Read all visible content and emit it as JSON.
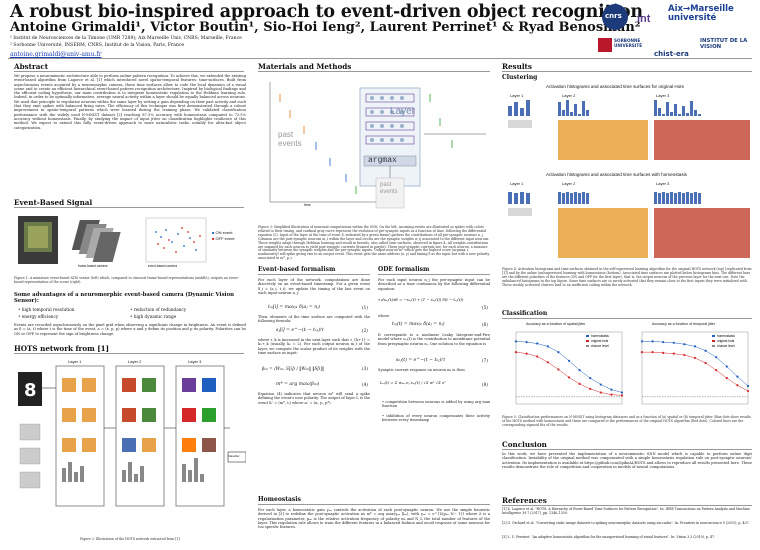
{
  "header": {
    "title": "A robust bio-inspired approach to event-driven object recognition",
    "authors": "Antoine Grimaldi¹, Victor Boutin¹, Sio-Hoi Ieng², Laurent Perrinet¹ & Ryad Benosman²",
    "affiliation_1": "¹ Institut de Neurosciences de la Timone (UMR 7289); Aix Marseille Univ, CNRS; Marseille, France",
    "affiliation_2": "² Sorbonne Université, INSERM, CNRS, Institut de la Vision, Paris, France",
    "email": "antoine.grimaldi@univ-amu.fr"
  },
  "logos": {
    "cnrs": "cnrs",
    "amu": "Aix→Marseille université",
    "sorbonne": "SORBONNE UNIVERSITÉ",
    "chistera": "chist-era",
    "institut": "INSTITUT DE LA VISION"
  },
  "left": {
    "abstract_heading": "Abstract",
    "abstract_text": "We propose a neuromimetic architecture able to perform online pattern recognition. To achieve this, we extended the existing event-based algorithm from Lagorce et al. [1] which introduced novel spatio-temporal features: time-surfaces. Built from asynchronous events acquired by a neuromorphic camera, these time surfaces allow to code the local dynamics of a visual scene and to create an efficient hierarchical event-based pattern recognition architecture. Inspired by biological findings and the efficient coding hypothesis, our main contribution is to integrate homeostatic regulation to the Hebbian learning rule. Indeed, in order to be optimally informative, average neural activity within a layer should be equally balanced across neurons. We used that principle to regularize neurons within the same layer by setting a gain depending on their past activity and such that they emit spikes with balanced firing rates. The efficiency of this technique was first demonstrated through a robust improvement in spatio-temporal patterns which were learned during the training phase. We validated classification performance with the widely used N-MNIST dataset [2] reaching 87.3% accuracy with homeostasis compared to 72.5% accuracy without homeostasis. Finally, by studying the impact of input jitter on classification highlights resilience of this method. We expect to extend this fully event-driven approach to more naturalistic tasks, notably for ultra-fast object categorization.",
    "event_heading": "Event-Based Signal",
    "fig1_caption": "Figure 1: A miniature event-based ATIS sensor (left) which, compared to classical frame-based representations (middle), outputs an event-based representation of the scene (right).",
    "fig1_on": "ON event",
    "fig1_off": "OFF event",
    "fig1_frame_label": "frame-based camera",
    "fig1_event_label": "event-based camera",
    "advantages_heading": "Some advantages of a neuromorphic event-based camera (Dynamic Vision Sensor):",
    "advantages": [
      "high temporal resolution",
      "reduction of redundancy",
      "energy efficiency",
      "high dynamic range"
    ],
    "events_text": "Events are recorded asynchronously on the pixel grid when observing a significant change in brightness. An event is defined as δ = (a, t) where t is the time of the event, a = (x, p, p) where x and y define its position and p its polarity. Polarities can be ON or OFF to represent the sign of brightness change.",
    "hots_heading": "HOTS network from [1]",
    "hots_layers": [
      "Layer 1",
      "Layer 2",
      "Layer 3"
    ],
    "hots_classifier": "Classifier",
    "fig2_caption": "Figure 2: Illustration of the HOTS network extracted from [1]."
  },
  "middle": {
    "heading": "Materials and Methods",
    "diagram_layer": "Layer",
    "diagram_argmax": "argmax",
    "diagram_past_events_left": "past events",
    "diagram_past_events_bottom": "past events",
    "diagram_time": "time",
    "fig3_caption": "Figure 3: Simplified illustration of neuronal computations within the SNN. On the left, incoming events are illustrated as spikes with colors related to their timing, and cardinal gray curve represent the evolution of pre-synaptic inputs as a function of time, following the differential equation (5). Input of the layer at the time of event δ, indicated by a green frame) gathers the contributions of all pre-synaptic neurons n_j. Columns are the post-synaptic neurons m_i within the layer and circles are the synaptic weights w_ij associated to the different input neurons. These weights adapt through Hebbian learning and result in kernels, also called time surfaces, observed in figure 4. All weights contributions are summed for each neuron to yield post-synaptic currents (framed in purple). These post-synaptic currents are, for each neuron, a measure of similarity between the synaptic weights and the pre-synaptic inputs. Output neuron m* which gets the highest score (argmax_i, nonlinearity) will spike giving rise to an output event. This event gets the same address (x, y) and timing δ as the input but with a new polarity associated to m*, p_i.",
    "ebf_heading": "Event-based formalism",
    "ebf_text_1": "For each layer of the network, computations are done discretely on an event-based timestamp. For a given event δ_i = (a_i, t_i), we update the timing of the last event on each input neuron n_j:",
    "ebf_eq1": "tₙⱼ[i] = maxⱼ̵₁ δ(aⱼ = nⱼ)",
    "ebf_text_2": "Then, elements of the time surface are computed with the following formula:",
    "ebf_eq2": "sⱼ[i] = e^−(tᵢ − tₙⱼ)/τ",
    "ebf_text_3": "where τ_k is increased in the next layer such that τ_{k+1} = k₀·τ_k (usually, k₀ = 2). For each output neuron m_i of the layer, we compute the scalar product of its weights with the time surface as input:",
    "ebf_eq3": "βₘᵢ = ⟨Wₘᵢ, S[i]⟩ / ‖Wₘᵢ‖ ‖S[i]‖",
    "ebf_eq4": "m* = arg maxᵢ(βₘᵢ)",
    "ebf_text_4": "Equation (4) indicates that neuron m* will send a spike defining the event's new polarity. The output of layer L is the event δᵢ' = (m*, tᵢ) where aᵢ' = (xᵢ, yᵢ, p*).",
    "ode_heading": "ODE formalism",
    "ode_text_1": "For each input neuron n_j the pre-synaptic input can be described as a time continuous by the following differential equation:",
    "ode_eq5": "τ dsₙⱼ(t)/dt = −sₙⱼ(t) + (1 − sₙⱼ(t)) δ(t − tₙⱼ(t))",
    "ode_text_2": "where",
    "ode_eq6": "tₙⱼ(t) = maxⱼ̵₁ δ(aⱼ = nⱼ)",
    "ode_text_3": "It corresponds to a nonlinear Leaky Integrate-and-Fire model where sₙⱼ(t) is the contribution to membrane potential from presynaptic neuron nⱼ. One solution to the equation is",
    "ode_eq7": "sₙⱼ(t) = e^−(t − tₙⱼ)/τ",
    "ode_text_4": "Synaptic current response on neuron mᵢ is then",
    "ode_eq8": "Iₘᵢ(t) = Σ wₘᵢ,nⱼ sₙⱼ(t) / √Σ w² √Σ s²",
    "ode_bullets": [
      "competition between neurons is added by using arg max function",
      "inhibition of every neuron compensates their activity between every timestamp"
    ],
    "homeo_heading": "Homeostasis",
    "homeo_text": "For each layer, a homeostatic gain γₘᵢ controls the activation of each post-synaptic neuron. We use the simple heuristic derived in [3] to redefine the post-synaptic activation as m* = arg max(γₘᵢ βₘᵢ), with γₘᵢ = e^{λ(pₘᵢ N− 1)} where λ is a regularization parameter, pₘᵢ is the relative activation frequency of polarity mᵢ and N_L the total number of features of the layer. This regulation rule allows to train the different features in a balanced fashion and avoid response of some neurons for too specific features."
  },
  "right": {
    "results_heading": "Results",
    "clustering_heading": "Clustering",
    "hist1_title": "Activation histograms and associated time surfaces for original Hots",
    "hist2_title": "Activation histograms and associated time surfaces with homeostasis",
    "layer_labels": [
      "Layer 1",
      "Layer 2",
      "Layer 3"
    ],
    "fig4_caption": "Figure 4: Activation histograms and time surfaces obtained in the self-supervised learning algorithm for the original HOTS network (top) [replicated from [1]] and by the online (un)supervised learning with homeostasis (bottom). Associated time surfaces are plotted below histograms bins. The different bars are the different polarities of the features (ON and OFF for the first layer), that is, the output neurons of the previous layer for the next one. Note the unbalanced histograms in the top figure. Some time surfaces are so rarely activated that they remain close to the first inputs they were initialized with. These weakly activated clusters lead to an inefficient coding within the network.",
    "classification_heading": "Classification",
    "chart_left_title": "Accuracy as a function of spatial jitter",
    "chart_right_title": "Accuracy as a function of temporal jitter",
    "legend": [
      "homeostasis",
      "original hots",
      "chance level"
    ],
    "fig5_caption": "Figure 5: Classification performances on N-MNIST using histogram distances and as a function of (a) spatial or (b) temporal jitter. Blue dots show results of the HOTS method with homeostasis and these are compared to the performances of the original HOTS algorithm (Red dots). Colored lines are the corresponding sigmoid fits of the results.",
    "conclusion_heading": "Conclusion",
    "conclusion_text": "In this work, we have presented the implementation of a neuromimetic SNN model which is capable to perform online digit classification. Instability of the original method was compensated with a simple homeostasis regulation rule on post-synaptic neurons' activation. Its implementation is available at https://github.com/SpikeAI/HOTS and allows to reproduce all results presented here. These results demonstrate the role of competition and cooperation in models of neural computations.",
    "references_heading": "References",
    "references": [
      "[1] X. Lagorce et al. \"HOTS: A Hierarchy of Event-Based Time-Surfaces for Pattern Recognition\". In: IEEE Transactions on Pattern Analysis and Machine Intelligence 39.7 (2017), pp. 1346–1359.",
      "[2] G. Orchard et al. \"Converting static image datasets to spiking neuromorphic datasets using saccades\". In: Frontiers in neuroscience 9 (2015), p. 437.",
      "[3] L. U. Perrinet. \"An adaptive homeostatic algorithm for the unsupervised learning of visual features\". In: Vision 3.3 (2019), p. 47."
    ]
  },
  "colors": {
    "blue": "#1f5fbf",
    "red": "#d62728",
    "gray": "#8a8a8a",
    "heatmap_bar": "#4a6fb5",
    "layer_box": "#9ab0c8"
  },
  "chart_data": [
    {
      "type": "scatter",
      "title": "Accuracy as a function of spatial jitter",
      "series": [
        {
          "name": "homeostasis",
          "color": "#1f5fbf",
          "x": [
            0,
            1,
            2,
            3,
            4,
            5,
            6,
            7,
            8,
            9,
            10
          ],
          "y": [
            0.87,
            0.86,
            0.84,
            0.8,
            0.72,
            0.6,
            0.47,
            0.36,
            0.27,
            0.2,
            0.16
          ]
        },
        {
          "name": "original hots",
          "color": "#d62728",
          "x": [
            0,
            1,
            2,
            3,
            4,
            5,
            6,
            7,
            8,
            9,
            10
          ],
          "y": [
            0.72,
            0.7,
            0.66,
            0.58,
            0.48,
            0.37,
            0.28,
            0.21,
            0.16,
            0.13,
            0.12
          ]
        },
        {
          "name": "chance level",
          "color": "#888888",
          "x": [
            0,
            10
          ],
          "y": [
            0.1,
            0.1
          ]
        }
      ]
    },
    {
      "type": "scatter",
      "title": "Accuracy as a function of temporal jitter",
      "series": [
        {
          "name": "homeostasis",
          "color": "#1f5fbf",
          "x": [
            0,
            1,
            2,
            3,
            4,
            5,
            6,
            7,
            8,
            9,
            10
          ],
          "y": [
            0.87,
            0.87,
            0.86,
            0.85,
            0.83,
            0.8,
            0.74,
            0.65,
            0.52,
            0.38,
            0.25
          ]
        },
        {
          "name": "original hots",
          "color": "#d62728",
          "x": [
            0,
            1,
            2,
            3,
            4,
            5,
            6,
            7,
            8,
            9,
            10
          ],
          "y": [
            0.72,
            0.72,
            0.71,
            0.7,
            0.68,
            0.64,
            0.57,
            0.47,
            0.36,
            0.26,
            0.18
          ]
        },
        {
          "name": "chance level",
          "color": "#888888",
          "x": [
            0,
            10
          ],
          "y": [
            0.1,
            0.1
          ]
        }
      ]
    }
  ]
}
